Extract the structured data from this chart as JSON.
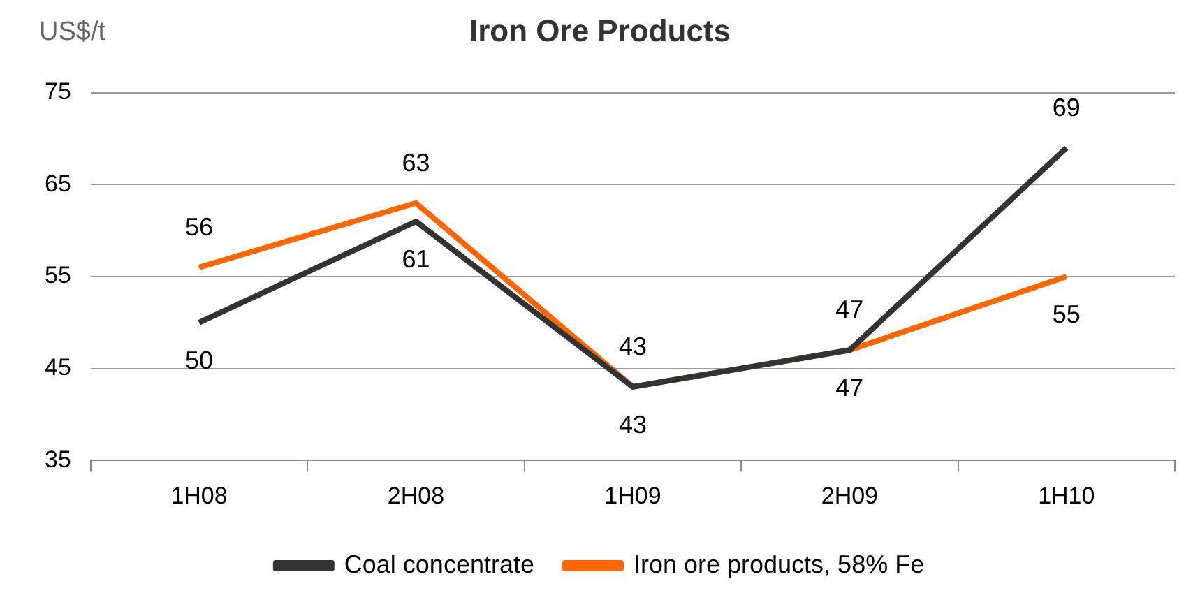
{
  "chart_data": {
    "type": "line",
    "title": "Iron Ore Products",
    "ylabel": "US$/t",
    "categories": [
      "1H08",
      "2H08",
      "1H09",
      "2H09",
      "1H10"
    ],
    "series": [
      {
        "name": "Coal concentrate",
        "color": "#333333",
        "values": [
          50,
          61,
          43,
          47,
          69
        ]
      },
      {
        "name": "Iron ore products, 58% Fe",
        "color": "#ff6600",
        "values": [
          56,
          63,
          43,
          47,
          55
        ]
      }
    ],
    "ylim": [
      35,
      75
    ],
    "yticks": [
      35,
      45,
      55,
      65,
      75
    ],
    "grid": "y",
    "legend": "bottom",
    "marker": "none",
    "line_style": "solid",
    "data_labels": true
  }
}
